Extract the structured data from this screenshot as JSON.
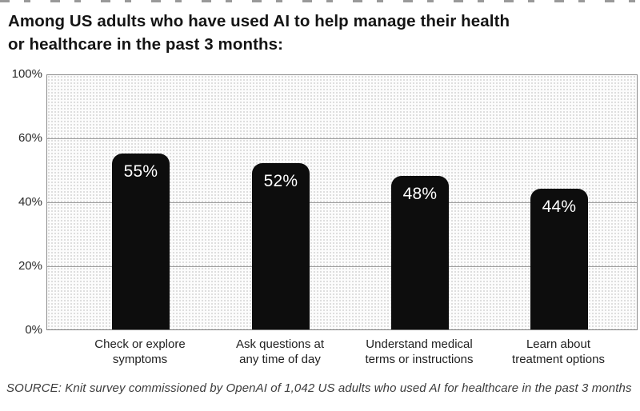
{
  "title": {
    "full": "Among US adults who have used AI to help manage their health or healthcare in the past 3 months:",
    "line1": "Among US adults who have used AI to help manage their health",
    "line2": "or healthcare in the past 3 months:"
  },
  "chart_data": {
    "type": "bar",
    "title": "Among US adults who have used AI to help manage their health or healthcare in the past 3 months:",
    "categories": [
      "Check or explore symptoms",
      "Ask questions at any time of day",
      "Understand medical terms or instructions",
      "Learn about treatment options"
    ],
    "categories_lines": [
      [
        "Check or explore",
        "symptoms"
      ],
      [
        "Ask questions at",
        "any time of day"
      ],
      [
        "Understand medical",
        "terms or instructions"
      ],
      [
        "Learn about",
        "treatment options"
      ]
    ],
    "values": [
      55,
      52,
      48,
      44
    ],
    "value_labels": [
      "55%",
      "52%",
      "48%",
      "44%"
    ],
    "y_axis": {
      "tick_labels_bottom_to_top": [
        "0%",
        "20%",
        "40%",
        "60%",
        "100%"
      ],
      "gridlines_equal_spacing": true
    },
    "legend": null,
    "bar_color": "#0d0d0d",
    "value_label_color": "#ffffff"
  },
  "colors": {
    "plot_dot_pattern": "#d4d4d4",
    "plot_background": "#fcfcfc",
    "gridline": "#9b9b9b",
    "plot_border": "#8c8c8c",
    "title_text": "#141414",
    "axis_text": "#2a2a2a",
    "source_text": "#3c3c3c"
  },
  "source": {
    "text": "SOURCE: Knit survey commissioned by OpenAI of 1,042 US adults who used AI for healthcare in the past 3 months"
  }
}
